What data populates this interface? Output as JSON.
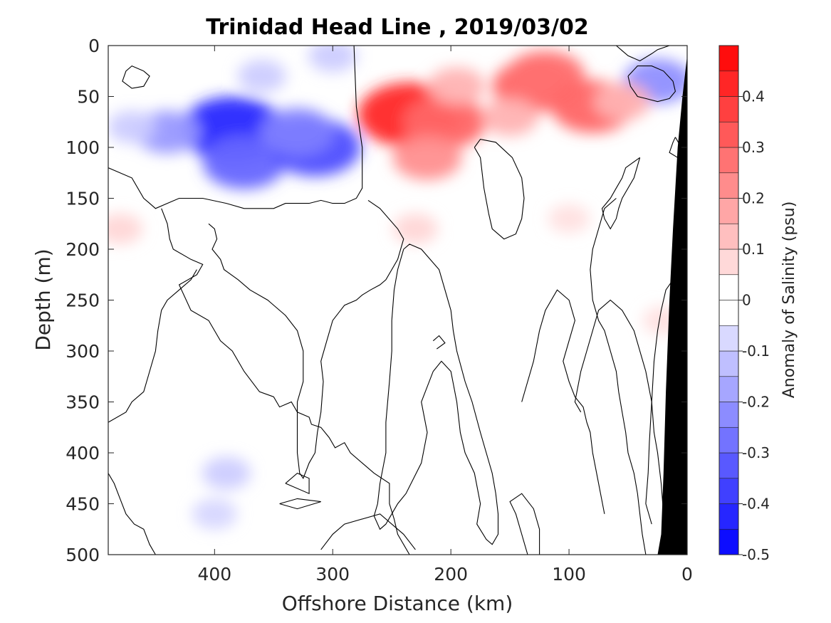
{
  "chart_data": {
    "type": "heatmap",
    "subtype": "filled-contour-section",
    "title": "Trinidad Head Line , 2019/03/02",
    "xlabel": "Offshore Distance (km)",
    "ylabel": "Depth (m)",
    "xlim": [
      490,
      0
    ],
    "ylim": [
      0,
      500
    ],
    "x_reversed": true,
    "y_reversed": true,
    "x_ticks": [
      400,
      300,
      200,
      100,
      0
    ],
    "y_ticks": [
      0,
      50,
      100,
      150,
      200,
      250,
      300,
      350,
      400,
      450,
      500
    ],
    "colorbar": {
      "label": "Anomaly of Salinity (psu)",
      "range": [
        -0.5,
        0.5
      ],
      "levels_step": 0.05,
      "ticks": [
        0.4,
        0.3,
        0.2,
        0.1,
        0,
        -0.1,
        -0.2,
        -0.3,
        -0.4,
        -0.5
      ],
      "tick_labels": [
        "0.4",
        "0.3",
        "0.2",
        "0.1",
        "0",
        "-0.1",
        "-0.2",
        "-0.3",
        "-0.4",
        "-0.5"
      ],
      "colormap": "blue-white-red",
      "low_color": "#0000ff",
      "high_color": "#ff0000"
    },
    "anomaly_features": [
      {
        "x": 385,
        "depth": 82,
        "value": -0.42
      },
      {
        "x": 440,
        "depth": 85,
        "value": -0.2
      },
      {
        "x": 375,
        "depth": 115,
        "value": -0.3
      },
      {
        "x": 315,
        "depth": 100,
        "value": -0.35
      },
      {
        "x": 330,
        "depth": 85,
        "value": -0.25
      },
      {
        "x": 360,
        "depth": 30,
        "value": -0.1
      },
      {
        "x": 300,
        "depth": 10,
        "value": -0.1
      },
      {
        "x": 470,
        "depth": 80,
        "value": -0.1
      },
      {
        "x": 25,
        "depth": 35,
        "value": -0.22
      },
      {
        "x": 400,
        "depth": 460,
        "value": -0.08
      },
      {
        "x": 390,
        "depth": 420,
        "value": -0.1
      },
      {
        "x": 235,
        "depth": 68,
        "value": 0.42
      },
      {
        "x": 205,
        "depth": 75,
        "value": 0.3
      },
      {
        "x": 220,
        "depth": 110,
        "value": 0.22
      },
      {
        "x": 195,
        "depth": 40,
        "value": 0.15
      },
      {
        "x": 130,
        "depth": 40,
        "value": 0.3
      },
      {
        "x": 120,
        "depth": 30,
        "value": 0.28
      },
      {
        "x": 80,
        "depth": 60,
        "value": 0.3
      },
      {
        "x": 55,
        "depth": 55,
        "value": 0.15
      },
      {
        "x": 150,
        "depth": 70,
        "value": 0.15
      },
      {
        "x": 230,
        "depth": 180,
        "value": 0.08
      },
      {
        "x": 480,
        "depth": 180,
        "value": 0.08
      },
      {
        "x": 20,
        "depth": 270,
        "value": 0.06
      },
      {
        "x": 100,
        "depth": 170,
        "value": 0.06
      }
    ],
    "zero_contour_lines": [
      [
        [
          490,
          120
        ],
        [
          470,
          130
        ],
        [
          460,
          150
        ],
        [
          455,
          155
        ],
        [
          450,
          160
        ],
        [
          440,
          155
        ],
        [
          430,
          150
        ],
        [
          410,
          150
        ],
        [
          390,
          155
        ],
        [
          375,
          160
        ],
        [
          360,
          160
        ],
        [
          350,
          160
        ],
        [
          340,
          155
        ],
        [
          320,
          155
        ],
        [
          310,
          152
        ],
        [
          300,
          155
        ],
        [
          290,
          155
        ],
        [
          280,
          150
        ],
        [
          275,
          140
        ],
        [
          275,
          100
        ],
        [
          280,
          60
        ],
        [
          282,
          0
        ]
      ],
      [
        [
          445,
          160
        ],
        [
          440,
          175
        ],
        [
          438,
          190
        ],
        [
          435,
          200
        ],
        [
          420,
          210
        ],
        [
          410,
          215
        ],
        [
          415,
          225
        ],
        [
          430,
          235
        ],
        [
          420,
          260
        ],
        [
          405,
          270
        ],
        [
          395,
          290
        ],
        [
          385,
          300
        ],
        [
          375,
          320
        ],
        [
          362,
          340
        ],
        [
          350,
          345
        ],
        [
          345,
          355
        ],
        [
          335,
          350
        ],
        [
          330,
          360
        ],
        [
          320,
          365
        ],
        [
          318,
          372
        ],
        [
          310,
          375
        ],
        [
          303,
          385
        ],
        [
          298,
          395
        ],
        [
          290,
          390
        ],
        [
          285,
          400
        ],
        [
          275,
          410
        ],
        [
          265,
          420
        ],
        [
          252,
          430
        ],
        [
          252,
          450
        ],
        [
          248,
          465
        ],
        [
          245,
          480
        ],
        [
          240,
          490
        ],
        [
          235,
          500
        ]
      ],
      [
        [
          490,
          370
        ],
        [
          475,
          360
        ],
        [
          470,
          350
        ],
        [
          465,
          345
        ],
        [
          460,
          340
        ],
        [
          455,
          320
        ],
        [
          450,
          300
        ],
        [
          448,
          280
        ],
        [
          445,
          260
        ],
        [
          440,
          250
        ],
        [
          430,
          240
        ],
        [
          420,
          230
        ],
        [
          415,
          220
        ]
      ],
      [
        [
          490,
          420
        ],
        [
          485,
          430
        ],
        [
          480,
          445
        ],
        [
          475,
          460
        ],
        [
          468,
          470
        ],
        [
          460,
          475
        ],
        [
          455,
          490
        ],
        [
          450,
          500
        ]
      ],
      [
        [
          405,
          175
        ],
        [
          400,
          180
        ],
        [
          398,
          190
        ],
        [
          402,
          200
        ],
        [
          395,
          210
        ],
        [
          392,
          220
        ],
        [
          380,
          230
        ],
        [
          370,
          240
        ],
        [
          355,
          250
        ],
        [
          340,
          265
        ],
        [
          330,
          280
        ],
        [
          325,
          300
        ],
        [
          325,
          330
        ],
        [
          330,
          350
        ],
        [
          330,
          380
        ],
        [
          330,
          400
        ],
        [
          328,
          420
        ],
        [
          325,
          425
        ],
        [
          320,
          410
        ],
        [
          315,
          400
        ],
        [
          313,
          380
        ],
        [
          310,
          360
        ],
        [
          308,
          330
        ],
        [
          310,
          310
        ],
        [
          305,
          290
        ],
        [
          300,
          270
        ],
        [
          290,
          255
        ],
        [
          280,
          250
        ],
        [
          275,
          245
        ],
        [
          268,
          240
        ],
        [
          260,
          235
        ],
        [
          255,
          230
        ],
        [
          250,
          220
        ],
        [
          245,
          210
        ],
        [
          240,
          190
        ],
        [
          245,
          180
        ],
        [
          260,
          160
        ],
        [
          270,
          152
        ]
      ],
      [
        [
          340,
          430
        ],
        [
          330,
          420
        ],
        [
          320,
          425
        ],
        [
          320,
          440
        ],
        [
          340,
          430
        ]
      ],
      [
        [
          345,
          450
        ],
        [
          330,
          445
        ],
        [
          310,
          448
        ],
        [
          330,
          455
        ],
        [
          345,
          450
        ]
      ],
      [
        [
          310,
          495
        ],
        [
          300,
          480
        ],
        [
          290,
          470
        ],
        [
          260,
          460
        ],
        [
          240,
          480
        ],
        [
          230,
          495
        ]
      ],
      [
        [
          240,
          200
        ],
        [
          245,
          220
        ],
        [
          248,
          240
        ],
        [
          250,
          270
        ],
        [
          250,
          300
        ],
        [
          252,
          330
        ],
        [
          255,
          370
        ],
        [
          255,
          400
        ],
        [
          260,
          430
        ],
        [
          262,
          450
        ],
        [
          265,
          462
        ],
        [
          260,
          475
        ],
        [
          255,
          470
        ],
        [
          250,
          460
        ],
        [
          245,
          450
        ],
        [
          238,
          440
        ],
        [
          225,
          410
        ],
        [
          220,
          380
        ],
        [
          225,
          350
        ],
        [
          215,
          320
        ],
        [
          208,
          310
        ],
        [
          200,
          320
        ],
        [
          195,
          350
        ],
        [
          192,
          380
        ],
        [
          188,
          400
        ],
        [
          180,
          420
        ],
        [
          175,
          450
        ],
        [
          178,
          470
        ],
        [
          170,
          485
        ],
        [
          165,
          490
        ],
        [
          160,
          480
        ],
        [
          160,
          460
        ],
        [
          162,
          440
        ],
        [
          165,
          420
        ],
        [
          170,
          400
        ],
        [
          175,
          380
        ],
        [
          182,
          350
        ],
        [
          188,
          330
        ],
        [
          195,
          300
        ],
        [
          198,
          280
        ],
        [
          200,
          260
        ],
        [
          205,
          240
        ],
        [
          210,
          220
        ],
        [
          225,
          200
        ],
        [
          235,
          195
        ],
        [
          240,
          200
        ]
      ],
      [
        [
          135,
          500
        ],
        [
          140,
          480
        ],
        [
          145,
          460
        ],
        [
          150,
          448
        ],
        [
          140,
          440
        ],
        [
          130,
          455
        ],
        [
          125,
          475
        ],
        [
          125,
          500
        ]
      ],
      [
        [
          215,
          290
        ],
        [
          210,
          285
        ],
        [
          205,
          292
        ],
        [
          212,
          298
        ]
      ],
      [
        [
          180,
          100
        ],
        [
          175,
          110
        ],
        [
          172,
          140
        ],
        [
          168,
          165
        ],
        [
          165,
          180
        ],
        [
          155,
          190
        ],
        [
          145,
          185
        ],
        [
          140,
          170
        ],
        [
          138,
          150
        ],
        [
          140,
          130
        ],
        [
          148,
          110
        ],
        [
          162,
          95
        ],
        [
          175,
          92
        ],
        [
          180,
          100
        ]
      ],
      [
        [
          60,
          150
        ],
        [
          70,
          160
        ],
        [
          75,
          180
        ],
        [
          80,
          200
        ],
        [
          82,
          220
        ],
        [
          80,
          250
        ],
        [
          75,
          270
        ],
        [
          70,
          280
        ],
        [
          65,
          300
        ],
        [
          60,
          320
        ],
        [
          58,
          340
        ],
        [
          55,
          360
        ],
        [
          52,
          380
        ],
        [
          50,
          400
        ],
        [
          45,
          420
        ],
        [
          42,
          440
        ],
        [
          40,
          460
        ],
        [
          38,
          480
        ],
        [
          35,
          500
        ]
      ],
      [
        [
          140,
          350
        ],
        [
          135,
          330
        ],
        [
          130,
          310
        ],
        [
          125,
          280
        ],
        [
          120,
          260
        ],
        [
          110,
          240
        ],
        [
          100,
          250
        ],
        [
          95,
          270
        ],
        [
          100,
          290
        ],
        [
          105,
          310
        ],
        [
          100,
          330
        ],
        [
          95,
          345
        ],
        [
          88,
          355
        ],
        [
          85,
          370
        ],
        [
          82,
          380
        ],
        [
          80,
          400
        ],
        [
          75,
          430
        ],
        [
          70,
          460
        ]
      ],
      [
        [
          90,
          360
        ],
        [
          95,
          350
        ],
        [
          90,
          320
        ],
        [
          85,
          300
        ],
        [
          80,
          280
        ],
        [
          75,
          260
        ],
        [
          65,
          250
        ],
        [
          55,
          260
        ],
        [
          45,
          280
        ],
        [
          40,
          300
        ],
        [
          35,
          320
        ],
        [
          30,
          350
        ],
        [
          28,
          380
        ],
        [
          25,
          400
        ],
        [
          22,
          430
        ],
        [
          20,
          460
        ],
        [
          18,
          480
        ]
      ],
      [
        [
          40,
          110
        ],
        [
          45,
          130
        ],
        [
          55,
          150
        ],
        [
          58,
          160
        ],
        [
          60,
          170
        ],
        [
          65,
          180
        ],
        [
          70,
          170
        ],
        [
          72,
          160
        ],
        [
          65,
          150
        ],
        [
          60,
          140
        ],
        [
          55,
          130
        ],
        [
          52,
          120
        ],
        [
          40,
          110
        ]
      ],
      [
        [
          30,
          470
        ],
        [
          35,
          450
        ],
        [
          33,
          420
        ],
        [
          32,
          390
        ],
        [
          30,
          350
        ],
        [
          28,
          310
        ],
        [
          25,
          280
        ],
        [
          22,
          260
        ],
        [
          18,
          240
        ],
        [
          12,
          230
        ]
      ],
      [
        [
          60,
          0
        ],
        [
          55,
          5
        ],
        [
          50,
          10
        ],
        [
          40,
          15
        ],
        [
          30,
          8
        ],
        [
          25,
          4
        ],
        [
          15,
          0
        ]
      ],
      [
        [
          50,
          30
        ],
        [
          48,
          40
        ],
        [
          42,
          50
        ],
        [
          35,
          52
        ],
        [
          25,
          55
        ],
        [
          15,
          52
        ],
        [
          10,
          45
        ],
        [
          12,
          35
        ],
        [
          20,
          25
        ],
        [
          30,
          20
        ],
        [
          42,
          20
        ],
        [
          50,
          30
        ]
      ],
      [
        [
          460,
          25
        ],
        [
          470,
          20
        ],
        [
          475,
          25
        ],
        [
          478,
          35
        ],
        [
          470,
          42
        ],
        [
          460,
          40
        ],
        [
          455,
          30
        ],
        [
          460,
          25
        ]
      ],
      [
        [
          10,
          90
        ],
        [
          5,
          100
        ],
        [
          8,
          110
        ],
        [
          15,
          105
        ],
        [
          12,
          95
        ],
        [
          10,
          90
        ]
      ]
    ],
    "landmass": {
      "color": "#000000",
      "polygon": [
        [
          0,
          10
        ],
        [
          -5,
          20
        ],
        [
          0,
          20
        ],
        [
          0,
          500
        ],
        [
          25,
          500
        ],
        [
          22,
          480
        ],
        [
          20,
          420
        ],
        [
          18,
          340
        ],
        [
          15,
          250
        ],
        [
          12,
          180
        ],
        [
          8,
          100
        ],
        [
          4,
          50
        ],
        [
          0,
          10
        ]
      ]
    }
  }
}
